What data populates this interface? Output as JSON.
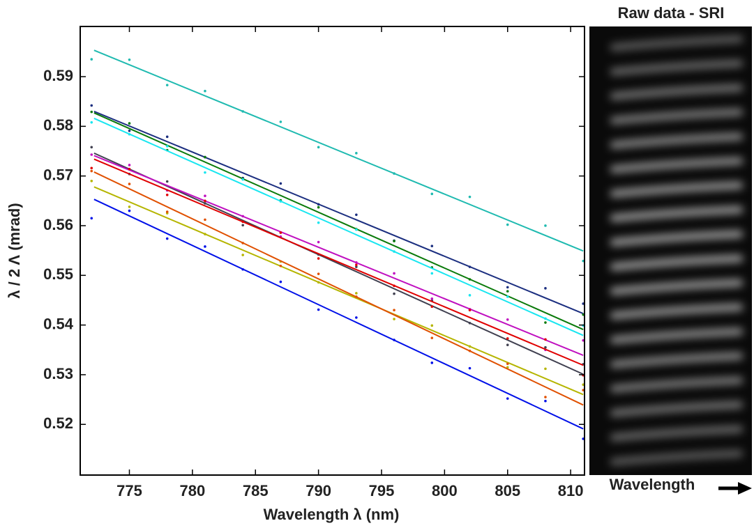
{
  "chart_data": {
    "type": "scatter-fit",
    "xlabel": "Wavelength λ (nm)",
    "ylabel": "λ / 2 Λ (mrad)",
    "xlim": [
      771.1,
      811.1
    ],
    "ylim": [
      0.5098,
      0.6001
    ],
    "xticks": [
      775,
      780,
      785,
      790,
      795,
      800,
      805,
      810
    ],
    "yticks": [
      0.52,
      0.53,
      0.54,
      0.55,
      0.56,
      0.57,
      0.58,
      0.59
    ],
    "x": [
      772,
      775,
      778,
      781,
      784,
      787,
      790,
      793,
      796,
      799,
      802,
      805,
      808,
      811
    ],
    "fit_x": [
      772.2,
      811
    ],
    "series": [
      {
        "color": "#1fbab0",
        "fit": [
          0.5953,
          0.5549
        ],
        "values": [
          0.5935,
          0.5934,
          0.5883,
          0.5871,
          0.583,
          0.5809,
          0.5758,
          0.5746,
          0.5705,
          0.5664,
          0.5658,
          0.5602,
          0.56,
          0.5529
        ]
      },
      {
        "color": "#1c2f80",
        "fit": [
          0.583,
          0.5423
        ],
        "values": [
          0.5842,
          0.5791,
          0.5779,
          0.5738,
          0.5696,
          0.5685,
          0.5643,
          0.5622,
          0.557,
          0.5559,
          0.5517,
          0.5476,
          0.5474,
          0.5443
        ]
      },
      {
        "color": "#0a7a0a",
        "fit": [
          0.5827,
          0.5391
        ],
        "values": [
          0.5829,
          0.5806,
          0.5752,
          0.5738,
          0.5694,
          0.5651,
          0.5637,
          0.5593,
          0.5569,
          0.5516,
          0.5492,
          0.5468,
          0.5405,
          0.5421
        ]
      },
      {
        "color": "#19e6f0",
        "fit": [
          0.5816,
          0.5379
        ],
        "values": [
          0.5808,
          0.5784,
          0.576,
          0.5707,
          0.5693,
          0.5649,
          0.5606,
          0.5592,
          0.5548,
          0.5504,
          0.546,
          0.5457,
          0.5413,
          0.5399
        ]
      },
      {
        "color": "#404050",
        "fit": [
          0.5746,
          0.5301
        ],
        "values": [
          0.5758,
          0.5704,
          0.5689,
          0.5645,
          0.5601,
          0.5586,
          0.5542,
          0.5517,
          0.5463,
          0.5449,
          0.5404,
          0.536,
          0.5355,
          0.5321
        ]
      },
      {
        "color": "#c010c0",
        "fit": [
          0.5741,
          0.5339
        ],
        "values": [
          0.5743,
          0.5722,
          0.5671,
          0.566,
          0.5619,
          0.5578,
          0.5567,
          0.5526,
          0.5504,
          0.5453,
          0.5432,
          0.5411,
          0.535,
          0.5369
        ]
      },
      {
        "color": "#e00000",
        "fit": [
          0.5734,
          0.5319
        ],
        "values": [
          0.5716,
          0.5714,
          0.5662,
          0.565,
          0.5608,
          0.5586,
          0.5534,
          0.5521,
          0.5479,
          0.5437,
          0.543,
          0.5373,
          0.5371,
          0.5299
        ]
      },
      {
        "color": "#b5b500",
        "fit": [
          0.5678,
          0.526
        ],
        "values": [
          0.569,
          0.5638,
          0.5625,
          0.5583,
          0.5541,
          0.5528,
          0.5486,
          0.5464,
          0.5412,
          0.5399,
          0.5357,
          0.5315,
          0.5312,
          0.528
        ]
      },
      {
        "color": "#e05000",
        "fit": [
          0.5708,
          0.5239
        ],
        "values": [
          0.571,
          0.5684,
          0.5628,
          0.5612,
          0.5565,
          0.5519,
          0.5503,
          0.5457,
          0.543,
          0.5374,
          0.5348,
          0.5322,
          0.5255,
          0.5269
        ]
      },
      {
        "color": "#0010e8",
        "fit": [
          0.5653,
          0.5191
        ],
        "values": [
          0.5615,
          0.563,
          0.5574,
          0.5558,
          0.5512,
          0.5487,
          0.5431,
          0.5415,
          0.537,
          0.5324,
          0.5313,
          0.5252,
          0.5247,
          0.5171
        ]
      }
    ]
  },
  "raw_panel": {
    "title": "Raw data - SRI",
    "label": "Wavelength"
  }
}
